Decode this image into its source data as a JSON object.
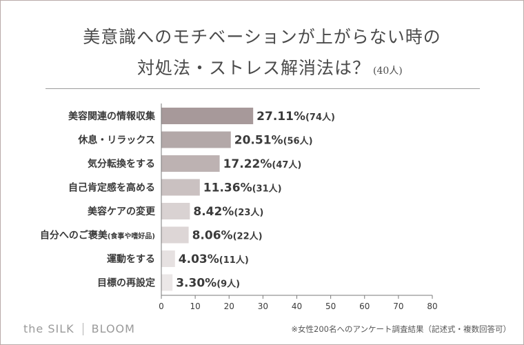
{
  "header": {
    "title_line1": "美意識へのモチベーションが上がらない時の",
    "title_line2": "対処法・ストレス解消法は？",
    "respondents": "(40人)"
  },
  "chart_data": {
    "type": "bar",
    "orientation": "horizontal",
    "title": "美意識へのモチベーションが上がらない時の対処法・ストレス解消法は？(40人)",
    "categories": [
      "美容関連の情報収集",
      "休息・リラックス",
      "気分転換をする",
      "自己肯定感を高める",
      "美容ケアの変更",
      "自分へのご褒美",
      "運動をする",
      "目標の再設定"
    ],
    "category_notes": [
      "",
      "",
      "",
      "",
      "",
      "(食事や嗜好品)",
      "",
      ""
    ],
    "values": [
      27.11,
      20.51,
      17.22,
      11.36,
      8.42,
      8.06,
      4.03,
      3.3
    ],
    "value_labels": [
      "27.11%",
      "20.51%",
      "17.22%",
      "11.36%",
      "8.42%",
      "8.06%",
      "4.03%",
      "3.30%"
    ],
    "count_labels": [
      "(74人)",
      "(56人)",
      "(47人)",
      "(31人)",
      "(23人)",
      "(22人)",
      "(11人)",
      "(9人)"
    ],
    "bar_colors": [
      "#a7999a",
      "#b3a8a8",
      "#bdb2b2",
      "#cac1c1",
      "#d9d2d2",
      "#ddd6d6",
      "#e6e1e1",
      "#ebe7e7"
    ],
    "xlim": [
      0,
      80
    ],
    "xticks": [
      0,
      10,
      20,
      30,
      40,
      50,
      60,
      70,
      80
    ],
    "xlabel": "",
    "ylabel": "",
    "grid": false
  },
  "footer": {
    "brand_left": "the SILK",
    "brand_right": "BLOOM",
    "note": "※女性200名へのアンケート調査結果（記述式・複数回答可）"
  }
}
